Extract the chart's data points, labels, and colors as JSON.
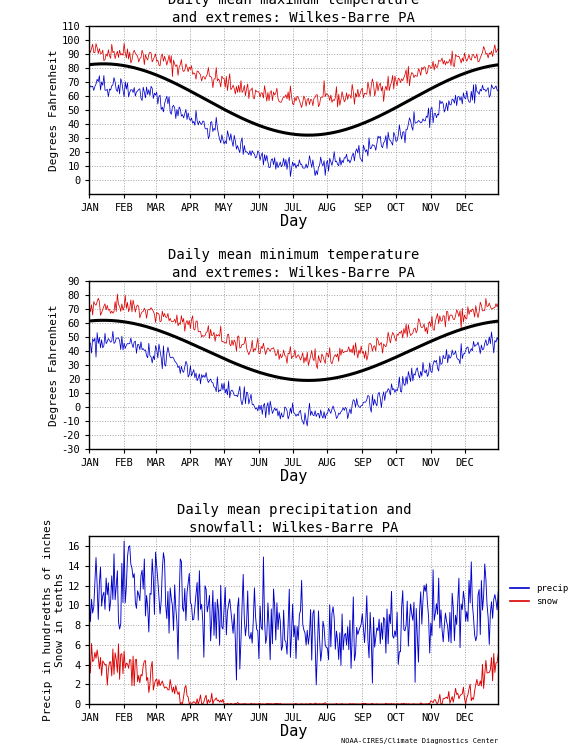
{
  "title1": "Daily mean maximum temperature\nand extremes: Wilkes-Barre PA",
  "title2": "Daily mean minimum temperature\nand extremes: Wilkes-Barre PA",
  "title3": "Daily mean precipitation and\nsnowfall: Wilkes-Barre PA",
  "ylabel1": "Degrees Fahrenheit",
  "ylabel2": "Degrees Fahrenheit",
  "ylabel3": "Precip in hundredths of inches\nSnow in tenths",
  "xlabel": "Day",
  "months": [
    "JAN",
    "FEB",
    "MAR",
    "APR",
    "MAY",
    "JUN",
    "JUL",
    "AUG",
    "SEP",
    "OCT",
    "NOV",
    "DEC"
  ],
  "month_days": [
    1,
    32,
    60,
    91,
    121,
    152,
    182,
    213,
    244,
    274,
    305,
    335
  ],
  "ylim1": [
    -10,
    110
  ],
  "ylim2": [
    -30,
    90
  ],
  "ylim3": [
    0,
    17
  ],
  "yticks1": [
    0,
    10,
    20,
    30,
    40,
    50,
    60,
    70,
    80,
    90,
    100,
    110
  ],
  "yticks2": [
    -30,
    -20,
    -10,
    0,
    10,
    20,
    30,
    40,
    50,
    60,
    70,
    80,
    90
  ],
  "yticks3": [
    0,
    2,
    4,
    6,
    8,
    10,
    12,
    14,
    16
  ],
  "color_red": "#dd0000",
  "color_blue": "#0000cc",
  "color_black": "#000000",
  "bg_color": "#ffffff",
  "grid_color": "#999999",
  "font_size_title": 10,
  "font_size_label": 8,
  "font_size_tick": 7.5,
  "credit": "NOAA-CIRES/Climate Diagnostics Center",
  "mean_max_winter": 32,
  "mean_max_summer": 83,
  "rec_high1_winter": 57,
  "rec_high1_summer": 92,
  "rec_low1_winter": 10,
  "rec_low1_summer": 67,
  "mean_min_winter": 19,
  "mean_min_summer": 62,
  "rec_high2_winter": 35,
  "rec_high2_summer": 72,
  "rec_low2_winter": -6,
  "rec_low2_summer": 46,
  "precip_winter": 6.5,
  "precip_summer": 11.5,
  "noise_scale1": 3.5,
  "noise_scale2": 3.5,
  "noise_precip": 2.2
}
